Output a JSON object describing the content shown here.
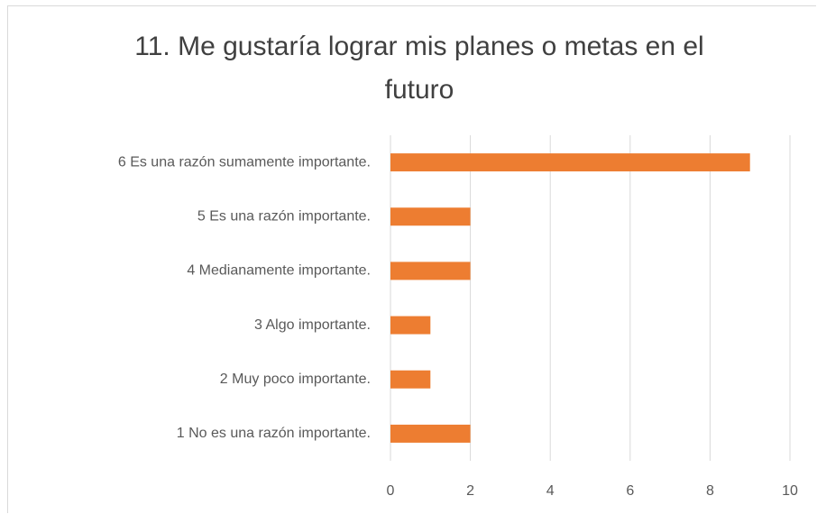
{
  "chart_data": {
    "type": "bar",
    "orientation": "horizontal",
    "title": "11. Me gustaría lograr mis planes o metas en el futuro",
    "categories": [
      "6 Es una razón sumamente importante.",
      "5 Es una razón importante.",
      "4 Medianamente importante.",
      "3 Algo importante.",
      "2 Muy poco importante.",
      "1 No es una razón importante."
    ],
    "values": [
      9,
      2,
      2,
      1,
      1,
      2
    ],
    "color": "#ed7d31",
    "xlim": [
      0,
      10
    ],
    "xticks": [
      0,
      2,
      4,
      6,
      8,
      10
    ],
    "grid": true
  }
}
